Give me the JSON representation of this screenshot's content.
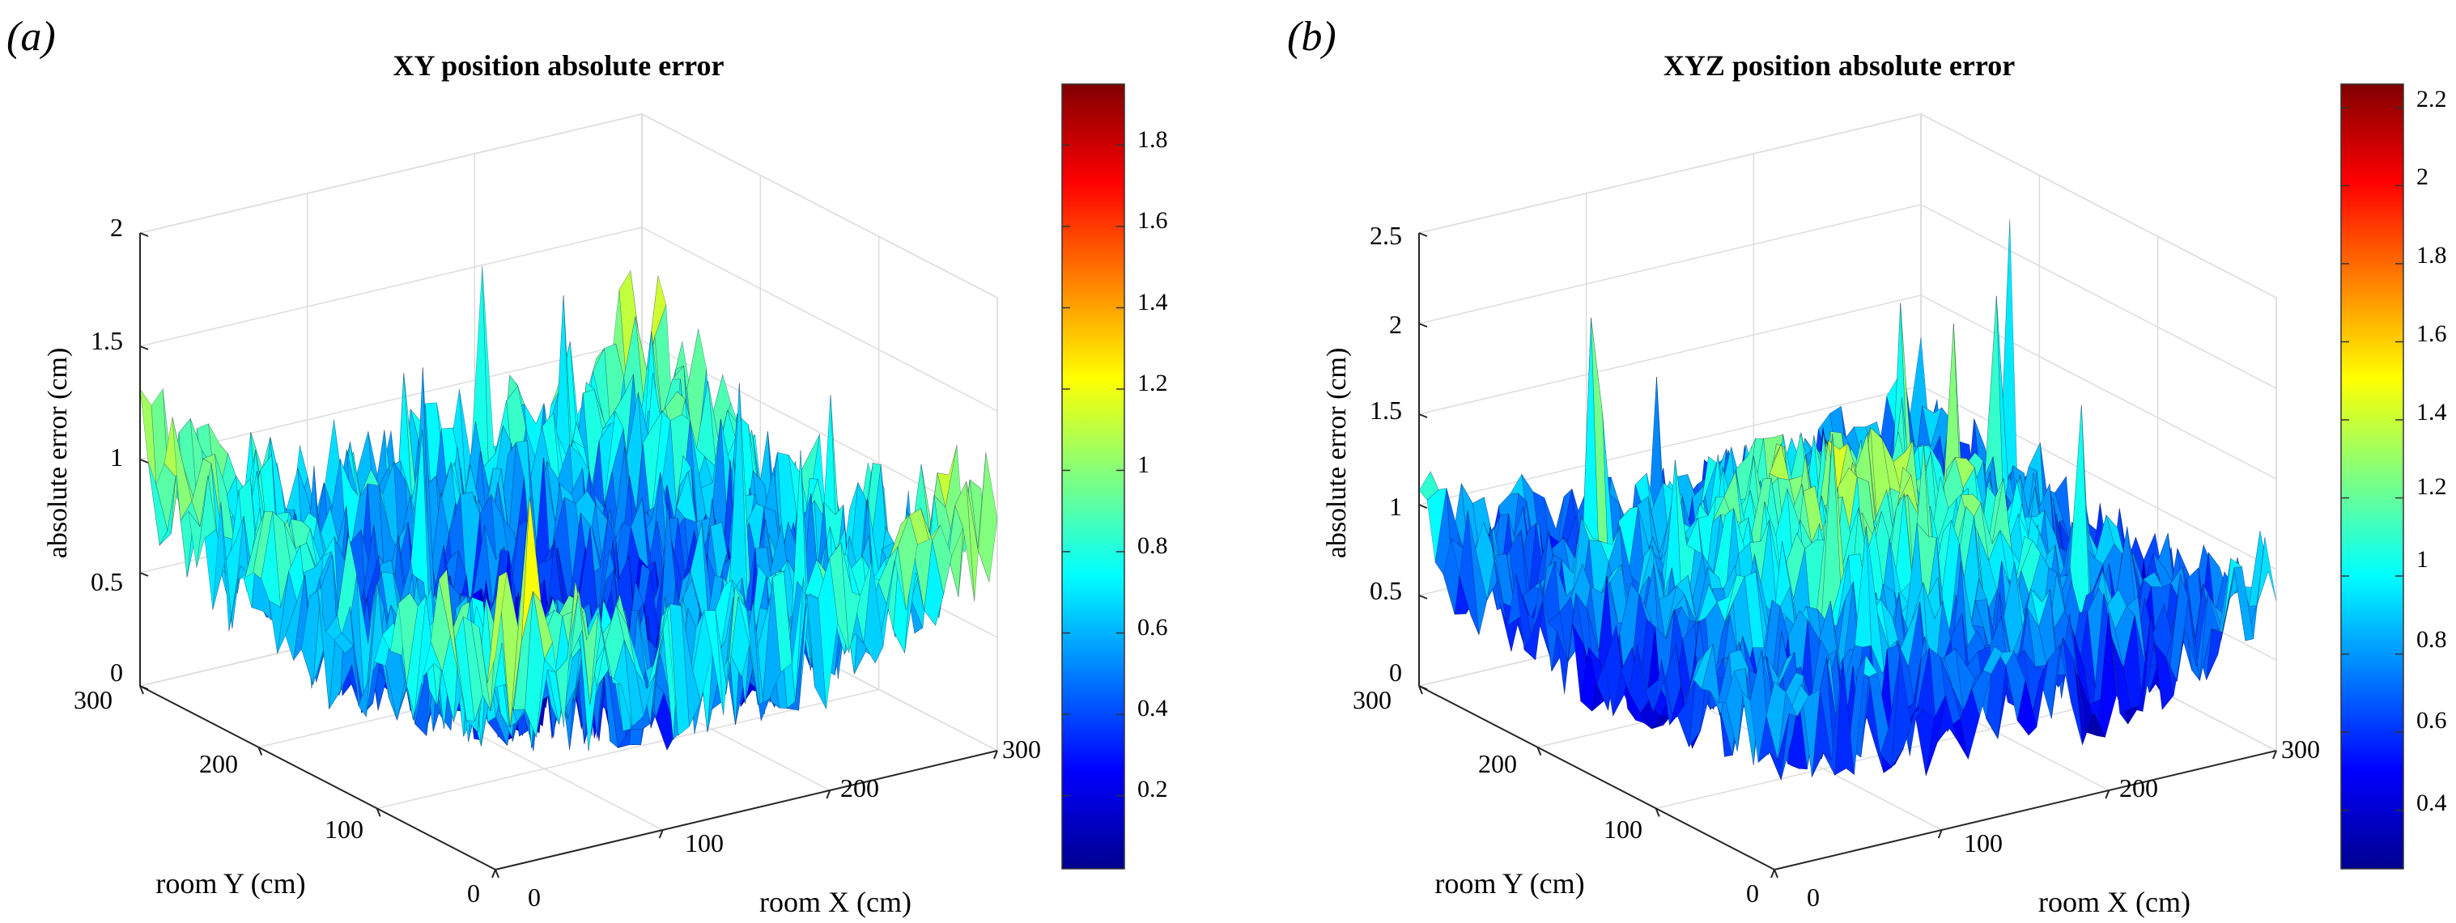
{
  "chart_data": [
    {
      "type": "surface3d",
      "panel_label": "(a)",
      "title": "XY position absolute error",
      "xlabel": "room X (cm)",
      "ylabel": "room Y (cm)",
      "zlabel": "absolute error (cm)",
      "xlim": [
        0,
        300
      ],
      "ylim": [
        0,
        300
      ],
      "zlim": [
        0,
        2
      ],
      "x_ticks": [
        "0",
        "100",
        "200",
        "300"
      ],
      "y_ticks": [
        "0",
        "100",
        "200",
        "300"
      ],
      "z_ticks": [
        "0",
        "0.5",
        "1",
        "1.5",
        "2"
      ],
      "colorbar": {
        "range": [
          0.02,
          1.95
        ],
        "ticks": [
          "0.2",
          "0.4",
          "0.6",
          "0.8",
          "1",
          "1.2",
          "1.4",
          "1.6",
          "1.8"
        ],
        "colormap": "jet"
      },
      "surface": {
        "pattern": "low-center",
        "center_value": 0.2,
        "edge_value": 0.65,
        "corner_value": 1.1,
        "noise_amplitude": 0.35,
        "max_value": 1.95
      }
    },
    {
      "type": "surface3d",
      "panel_label": "(b)",
      "title": "XYZ position absolute error",
      "xlabel": "room X (cm)",
      "ylabel": "room Y (cm)",
      "zlabel": "absolute error (cm)",
      "xlim": [
        0,
        300
      ],
      "ylim": [
        0,
        300
      ],
      "zlim": [
        0,
        2.5
      ],
      "x_ticks": [
        "0",
        "100",
        "200",
        "300"
      ],
      "y_ticks": [
        "0",
        "100",
        "200",
        "300"
      ],
      "z_ticks": [
        "0",
        "0.5",
        "1",
        "1.5",
        "2",
        "2.5"
      ],
      "colorbar": {
        "range": [
          0.25,
          2.26
        ],
        "ticks": [
          "0.4",
          "0.6",
          "0.8",
          "1",
          "1.2",
          "1.4",
          "1.6",
          "1.8",
          "2",
          "2.2"
        ],
        "colormap": "jet"
      },
      "surface": {
        "pattern": "high-center",
        "center_value": 1.3,
        "edge_value": 0.6,
        "corner_value": 0.95,
        "noise_amplitude": 0.35,
        "max_value": 2.26
      }
    }
  ]
}
